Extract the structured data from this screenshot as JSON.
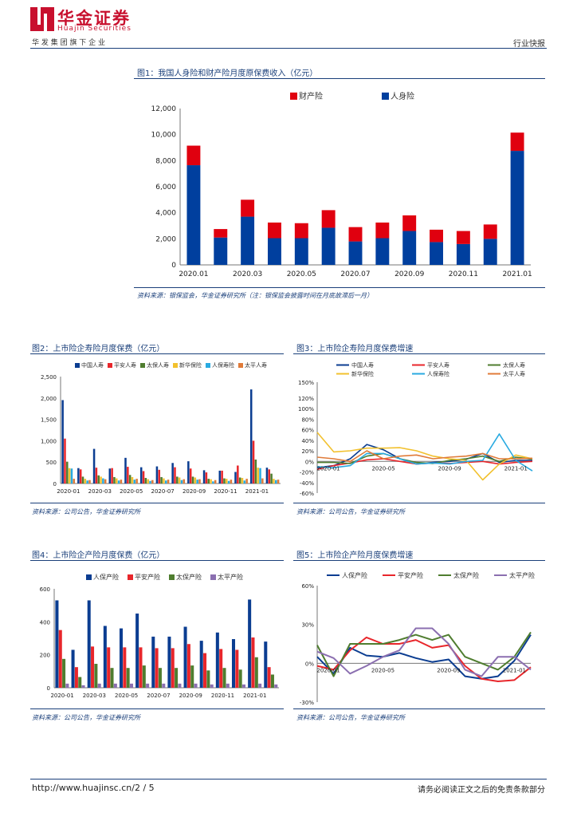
{
  "header": {
    "logo_cn": "华金证券",
    "logo_en": "Huajin Securities",
    "subtitle": "华 发 集 团 旗 下 企 业",
    "category": "行业快报",
    "brand_color": "#c8102e"
  },
  "footer": {
    "url_page": "http://www.huajinsc.cn/2 / 5",
    "disclaimer": "请务必阅读正文之后的免责条款部分"
  },
  "figures": {
    "fig1": {
      "title": "图1：我国人身险和财产险月度原保费收入（亿元）",
      "source": "资料来源：银保监会，华金证券研究所（注：银保监会披露时间在月底故滞后一月）"
    },
    "fig2": {
      "title": "图2：上市险企寿险月度保费（亿元）",
      "source": "资料来源：公司公告，华金证券研究所"
    },
    "fig3": {
      "title": "图3：上市险企寿险月度保费增速",
      "source": "资料来源：公司公告，华金证券研究所"
    },
    "fig4": {
      "title": "图4：上市险企产险月度保费（亿元）",
      "source": "资料来源：公司公告，华金证券研究所"
    },
    "fig5": {
      "title": "图5：上市险企产险月度保费增速",
      "source": "资料来源：公司公告，华金证券研究所"
    }
  },
  "chart_data": [
    {
      "id": "fig1",
      "type": "bar",
      "stacked": true,
      "categories": [
        "2020.01",
        "2020.02",
        "2020.03",
        "2020.04",
        "2020.05",
        "2020.06",
        "2020.07",
        "2020.08",
        "2020.09",
        "2020.10",
        "2020.11",
        "2020.12",
        "2021.01"
      ],
      "xtick_labels": [
        "2020.01",
        "",
        "2020.03",
        "",
        "2020.05",
        "",
        "2020.07",
        "",
        "2020.09",
        "",
        "2020.11",
        "",
        "2021.01"
      ],
      "series": [
        {
          "name": "人身险",
          "color": "#003f9e",
          "values": [
            7650,
            2100,
            3700,
            2050,
            2050,
            2850,
            1800,
            2050,
            2600,
            1750,
            1600,
            2000,
            8750
          ]
        },
        {
          "name": "财产险",
          "color": "#e0000f",
          "values": [
            1500,
            650,
            1300,
            1200,
            1150,
            1350,
            1100,
            1200,
            1200,
            950,
            1000,
            1100,
            1400
          ]
        }
      ],
      "legend_order": [
        "财产险",
        "人身险"
      ],
      "ylim": [
        0,
        12000
      ],
      "yticks": [
        "0",
        "2,000",
        "4,000",
        "6,000",
        "8,000",
        "10,000",
        "12,000"
      ]
    },
    {
      "id": "fig2",
      "type": "bar",
      "categories": [
        "2020-01",
        "2020-02",
        "2020-03",
        "2020-04",
        "2020-05",
        "2020-06",
        "2020-07",
        "2020-08",
        "2020-09",
        "2020-10",
        "2020-11",
        "2020-12",
        "2021-01",
        "2021-02"
      ],
      "xtick_labels": [
        "2020-01",
        "",
        "2020-03",
        "",
        "2020-05",
        "",
        "2020-07",
        "",
        "2020-09",
        "",
        "2020-11",
        "",
        "2021-01",
        ""
      ],
      "series": [
        {
          "name": "中国人寿",
          "color": "#0b3d91",
          "values": [
            1950,
            360,
            810,
            350,
            600,
            380,
            400,
            480,
            520,
            310,
            300,
            270,
            2200,
            370
          ]
        },
        {
          "name": "平安人寿",
          "color": "#e8262b",
          "values": [
            1050,
            330,
            370,
            360,
            390,
            290,
            320,
            380,
            350,
            260,
            300,
            420,
            1000,
            330
          ]
        },
        {
          "name": "太保人寿",
          "color": "#4f7d2f",
          "values": [
            510,
            160,
            190,
            150,
            200,
            130,
            150,
            160,
            160,
            110,
            120,
            140,
            560,
            230
          ]
        },
        {
          "name": "新华保险",
          "color": "#f2c12e",
          "values": [
            360,
            110,
            160,
            120,
            150,
            100,
            120,
            140,
            140,
            100,
            110,
            130,
            370,
            110
          ]
        },
        {
          "name": "人保寿险",
          "color": "#29aae1",
          "values": [
            350,
            70,
            120,
            70,
            90,
            60,
            70,
            80,
            90,
            50,
            60,
            70,
            360,
            80
          ]
        },
        {
          "name": "太平人寿",
          "color": "#e07b39",
          "values": [
            110,
            80,
            100,
            90,
            110,
            80,
            90,
            100,
            100,
            80,
            90,
            110,
            120,
            90
          ]
        }
      ],
      "ylim": [
        0,
        2500
      ],
      "yticks": [
        "0",
        "500",
        "1,000",
        "1,500",
        "2,000",
        "2,500"
      ]
    },
    {
      "id": "fig3",
      "type": "line",
      "x": [
        "2020-01",
        "2020-02",
        "2020-03",
        "2020-04",
        "2020-05",
        "2020-06",
        "2020-07",
        "2020-08",
        "2020-09",
        "2020-10",
        "2020-11",
        "2020-12",
        "2021-01",
        "2021-02"
      ],
      "xtick_labels": [
        "2020-01",
        "",
        "",
        "",
        "2020-05",
        "",
        "",
        "",
        "2020-09",
        "",
        "",
        "",
        "2021-01",
        ""
      ],
      "series": [
        {
          "name": "中国人寿",
          "color": "#0b3d91",
          "values": [
            -12,
            -8,
            5,
            32,
            22,
            5,
            -5,
            -2,
            0,
            4,
            15,
            -2,
            2,
            2
          ]
        },
        {
          "name": "平安人寿",
          "color": "#e8262b",
          "values": [
            -15,
            -8,
            -3,
            3,
            5,
            0,
            -5,
            -3,
            -4,
            -2,
            0,
            -5,
            -2,
            0
          ]
        },
        {
          "name": "太保人寿",
          "color": "#4f7d2f",
          "values": [
            -2,
            -2,
            -4,
            10,
            15,
            5,
            -2,
            -4,
            2,
            5,
            10,
            0,
            8,
            4
          ]
        },
        {
          "name": "新华保险",
          "color": "#f2c12e",
          "values": [
            55,
            18,
            20,
            25,
            25,
            26,
            20,
            10,
            5,
            2,
            -35,
            -5,
            12,
            5
          ]
        },
        {
          "name": "人保寿险",
          "color": "#29aae1",
          "values": [
            -10,
            -12,
            -8,
            15,
            15,
            5,
            -5,
            -3,
            -5,
            0,
            2,
            52,
            2,
            -18
          ]
        },
        {
          "name": "太平人寿",
          "color": "#e07b39",
          "values": [
            8,
            5,
            0,
            20,
            5,
            10,
            12,
            5,
            8,
            10,
            15,
            5,
            5,
            6
          ]
        }
      ],
      "ylim": [
        -60,
        150
      ],
      "yticks": [
        "-60%",
        "-40%",
        "-20%",
        "0%",
        "20%",
        "40%",
        "60%",
        "80%",
        "100%",
        "120%",
        "150%"
      ]
    },
    {
      "id": "fig4",
      "type": "bar",
      "categories": [
        "2020-01",
        "2020-02",
        "2020-03",
        "2020-04",
        "2020-05",
        "2020-06",
        "2020-07",
        "2020-08",
        "2020-09",
        "2020-10",
        "2020-11",
        "2020-12",
        "2021-01",
        "2021-02"
      ],
      "xtick_labels": [
        "2020-01",
        "",
        "2020-03",
        "",
        "2020-05",
        "",
        "2020-07",
        "",
        "2020-09",
        "",
        "2020-11",
        "",
        "2021-01",
        ""
      ],
      "series": [
        {
          "name": "人保产险",
          "color": "#0b3d91",
          "values": [
            530,
            230,
            530,
            375,
            360,
            450,
            310,
            310,
            370,
            285,
            335,
            295,
            535,
            280
          ]
        },
        {
          "name": "平安产险",
          "color": "#e8262b",
          "values": [
            350,
            125,
            250,
            245,
            245,
            245,
            240,
            240,
            265,
            210,
            235,
            230,
            305,
            125
          ]
        },
        {
          "name": "太保产险",
          "color": "#4f7d2f",
          "values": [
            175,
            65,
            145,
            120,
            120,
            135,
            120,
            120,
            135,
            105,
            120,
            110,
            185,
            80
          ]
        },
        {
          "name": "太平产险",
          "color": "#8b6fb0",
          "values": [
            25,
            15,
            25,
            25,
            25,
            25,
            25,
            25,
            25,
            20,
            25,
            20,
            25,
            20
          ]
        }
      ],
      "ylim": [
        0,
        600
      ],
      "yticks": [
        "0",
        "200",
        "400",
        "600"
      ]
    },
    {
      "id": "fig5",
      "type": "line",
      "x": [
        "2020-01",
        "2020-02",
        "2020-03",
        "2020-04",
        "2020-05",
        "2020-06",
        "2020-07",
        "2020-08",
        "2020-09",
        "2020-10",
        "2020-11",
        "2020-12",
        "2021-01",
        "2021-02"
      ],
      "xtick_labels": [
        "2020-01",
        "",
        "",
        "",
        "2020-05",
        "",
        "",
        "",
        "2020-09",
        "",
        "",
        "",
        "2021-01",
        ""
      ],
      "series": [
        {
          "name": "人保产险",
          "color": "#0b3d91",
          "values": [
            5,
            -8,
            12,
            6,
            5,
            8,
            4,
            1,
            3,
            -10,
            -12,
            -10,
            2,
            22
          ]
        },
        {
          "name": "平安产险",
          "color": "#e8262b",
          "values": [
            -2,
            -5,
            10,
            20,
            15,
            15,
            18,
            12,
            14,
            -2,
            -12,
            -14,
            -13,
            -3
          ]
        },
        {
          "name": "太保产险",
          "color": "#4f7d2f",
          "values": [
            14,
            -10,
            15,
            15,
            15,
            18,
            22,
            18,
            22,
            5,
            0,
            -5,
            5,
            24
          ]
        },
        {
          "name": "太平产险",
          "color": "#8b6fb0",
          "values": [
            9,
            4,
            -8,
            -2,
            5,
            10,
            27,
            27,
            15,
            -5,
            -10,
            5,
            5,
            -5
          ]
        }
      ],
      "ylim": [
        -30,
        60
      ],
      "yticks": [
        "-30%",
        "0%",
        "30%",
        "60%"
      ]
    }
  ]
}
